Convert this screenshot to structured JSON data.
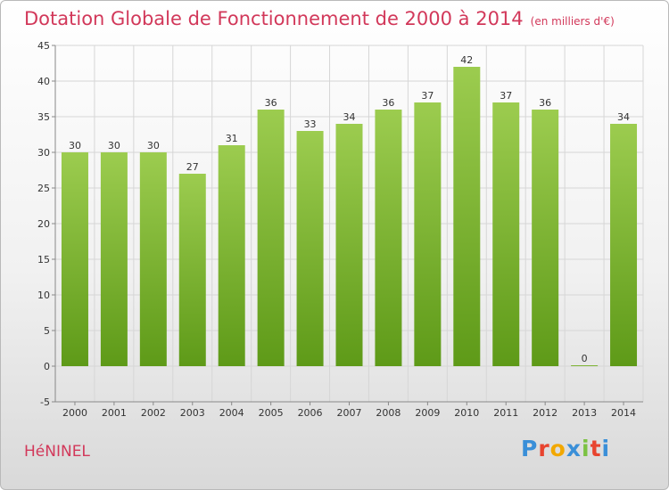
{
  "header": {
    "title": "Dotation Globale de Fonctionnement de 2000 à 2014",
    "unit": "(en milliers d'€)"
  },
  "footer": {
    "commune": "HéNINEL",
    "logo": [
      "P",
      "r",
      "o",
      "x",
      "i",
      "t",
      "i"
    ],
    "logo_colors": [
      "#3a8fd8",
      "#e8442f",
      "#f2a800",
      "#3a8fd8",
      "#7cc243",
      "#e8442f",
      "#3a8fd8"
    ]
  },
  "chart_data": {
    "type": "bar",
    "categories": [
      "2000",
      "2001",
      "2002",
      "2003",
      "2004",
      "2005",
      "2006",
      "2007",
      "2008",
      "2009",
      "2010",
      "2011",
      "2012",
      "2013",
      "2014"
    ],
    "values": [
      30,
      30,
      30,
      27,
      31,
      36,
      33,
      34,
      36,
      37,
      42,
      37,
      36,
      0,
      34
    ],
    "ylim": [
      -5,
      45
    ],
    "yticks": [
      -5,
      0,
      5,
      10,
      15,
      20,
      25,
      30,
      35,
      40,
      45
    ],
    "grid": true,
    "bar_color_top": "#9ccc4f",
    "bar_color_bottom": "#5e9a18"
  }
}
